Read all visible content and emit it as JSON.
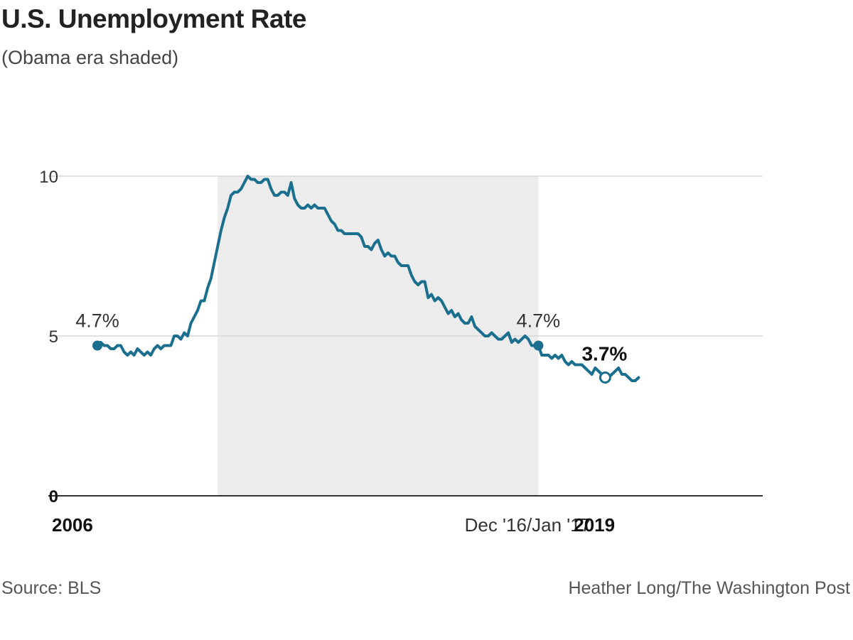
{
  "header": {
    "title": "U.S. Unemployment Rate",
    "subtitle": "(Obama era shaded)"
  },
  "footer": {
    "source": "Source: BLS",
    "credit": "Heather Long/The Washington Post"
  },
  "colors": {
    "line": "#1a6f8f",
    "shade": "#ececec",
    "grid": "#d6d6d6",
    "axis": "#333333",
    "text": "#222222"
  },
  "chart_data": {
    "type": "line",
    "title": "U.S. Unemployment Rate",
    "subtitle": "(Obama era shaded)",
    "xlabel": "",
    "ylabel": "",
    "ylim": [
      0,
      10
    ],
    "y_ticks": [
      "0",
      "5",
      "10"
    ],
    "x_tick_labels": [
      "2006",
      "Dec '16/Jan '17",
      "2019"
    ],
    "x_tick_values": [
      "2006-01",
      "2017-01",
      "2019-01"
    ],
    "grid": true,
    "shaded_region": {
      "label": "Obama era",
      "start": "2009-01",
      "end": "2017-01"
    },
    "annotations": [
      {
        "text": "4.7%",
        "x": "2006-01",
        "y": 4.7,
        "marker": "filled"
      },
      {
        "text": "4.7%",
        "x": "2017-01",
        "y": 4.7,
        "marker": "filled"
      },
      {
        "text": "3.7%",
        "x": "2018-09",
        "y": 3.7,
        "marker": "open",
        "bold": true
      }
    ],
    "series": [
      {
        "x_start": "2006-01",
        "frequency": "monthly",
        "values": [
          4.7,
          4.8,
          4.7,
          4.7,
          4.6,
          4.6,
          4.7,
          4.7,
          4.5,
          4.4,
          4.5,
          4.4,
          4.6,
          4.5,
          4.4,
          4.5,
          4.4,
          4.6,
          4.7,
          4.6,
          4.7,
          4.7,
          4.7,
          5.0,
          5.0,
          4.9,
          5.1,
          5.0,
          5.4,
          5.6,
          5.8,
          6.1,
          6.1,
          6.5,
          6.8,
          7.3,
          7.8,
          8.3,
          8.7,
          9.0,
          9.4,
          9.5,
          9.5,
          9.6,
          9.8,
          10.0,
          9.9,
          9.9,
          9.8,
          9.8,
          9.9,
          9.9,
          9.6,
          9.4,
          9.4,
          9.5,
          9.5,
          9.4,
          9.8,
          9.3,
          9.1,
          9.0,
          9.0,
          9.1,
          9.0,
          9.1,
          9.0,
          9.0,
          9.0,
          8.8,
          8.6,
          8.5,
          8.3,
          8.3,
          8.2,
          8.2,
          8.2,
          8.2,
          8.2,
          8.1,
          7.8,
          7.8,
          7.7,
          7.9,
          8.0,
          7.7,
          7.5,
          7.6,
          7.5,
          7.5,
          7.3,
          7.2,
          7.2,
          7.2,
          6.9,
          6.7,
          6.6,
          6.7,
          6.7,
          6.2,
          6.3,
          6.1,
          6.2,
          6.1,
          5.9,
          5.7,
          5.8,
          5.6,
          5.7,
          5.5,
          5.4,
          5.4,
          5.6,
          5.3,
          5.2,
          5.1,
          5.0,
          5.0,
          5.1,
          5.0,
          4.9,
          4.9,
          5.0,
          5.1,
          4.8,
          4.9,
          4.8,
          4.9,
          5.0,
          4.9,
          4.7,
          4.7,
          4.7,
          4.4,
          4.4,
          4.4,
          4.3,
          4.4,
          4.3,
          4.4,
          4.2,
          4.1,
          4.2,
          4.1,
          4.1,
          4.1,
          4.0,
          3.9,
          3.8,
          4.0,
          3.9,
          3.8,
          3.7,
          3.7,
          3.8,
          3.9,
          4.0,
          3.8,
          3.8,
          3.7,
          3.6,
          3.6,
          3.7
        ]
      }
    ]
  }
}
